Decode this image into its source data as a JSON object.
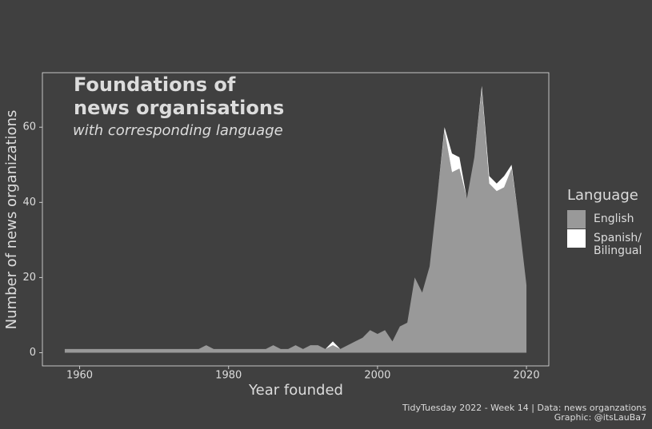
{
  "chart_data": {
    "type": "area",
    "title": "Foundations of\nnews organisations",
    "subtitle": "with corresponding language",
    "x_label": "Year founded",
    "y_label": "Number of news organizations",
    "legend_title": "Language",
    "caption": [
      "TidyTuesday 2022 - Week 14 | Data: news organzations",
      "Graphic: @itsLauBa7"
    ],
    "stacked": true,
    "x": [
      1958,
      1959,
      1960,
      1961,
      1962,
      1963,
      1964,
      1965,
      1966,
      1967,
      1968,
      1969,
      1970,
      1971,
      1972,
      1973,
      1974,
      1975,
      1976,
      1977,
      1978,
      1979,
      1980,
      1981,
      1982,
      1983,
      1984,
      1985,
      1986,
      1987,
      1988,
      1989,
      1990,
      1991,
      1992,
      1993,
      1994,
      1995,
      1996,
      1997,
      1998,
      1999,
      2000,
      2001,
      2002,
      2003,
      2004,
      2005,
      2006,
      2007,
      2008,
      2009,
      2010,
      2011,
      2012,
      2013,
      2014,
      2015,
      2016,
      2017,
      2018,
      2019,
      2020
    ],
    "series": [
      {
        "name": "English",
        "color": "#999999",
        "values": [
          1,
          1,
          1,
          1,
          1,
          1,
          1,
          1,
          1,
          1,
          1,
          1,
          1,
          1,
          1,
          1,
          1,
          1,
          1,
          2,
          1,
          1,
          1,
          1,
          1,
          1,
          1,
          1,
          2,
          1,
          1,
          2,
          1,
          2,
          2,
          1,
          2,
          1,
          2,
          3,
          4,
          6,
          5,
          6,
          3,
          7,
          8,
          20,
          16,
          23,
          41,
          59,
          48,
          49,
          41,
          52,
          70,
          45,
          43,
          44,
          49,
          35,
          18
        ]
      },
      {
        "name": "Spanish/\nBilingual",
        "color": "#ffffff",
        "values": [
          0,
          0,
          0,
          0,
          0,
          0,
          0,
          0,
          0,
          0,
          0,
          0,
          0,
          0,
          0,
          0,
          0,
          0,
          0,
          0,
          0,
          0,
          0,
          0,
          0,
          0,
          0,
          0,
          0,
          0,
          0,
          0,
          0,
          0,
          0,
          0,
          1,
          0,
          0,
          0,
          0,
          0,
          0,
          0,
          0,
          0,
          0,
          0,
          0,
          0,
          0,
          1,
          5,
          3,
          0,
          0,
          1,
          2,
          2,
          3,
          1,
          0,
          0
        ]
      }
    ],
    "xlim": [
      1955,
      2023
    ],
    "xticks": [
      1960,
      1980,
      2000,
      2020
    ],
    "ylim": [
      -3.5,
      74.5
    ],
    "yticks": [
      0,
      20,
      40,
      60
    ],
    "grid": false,
    "legend": "right"
  }
}
